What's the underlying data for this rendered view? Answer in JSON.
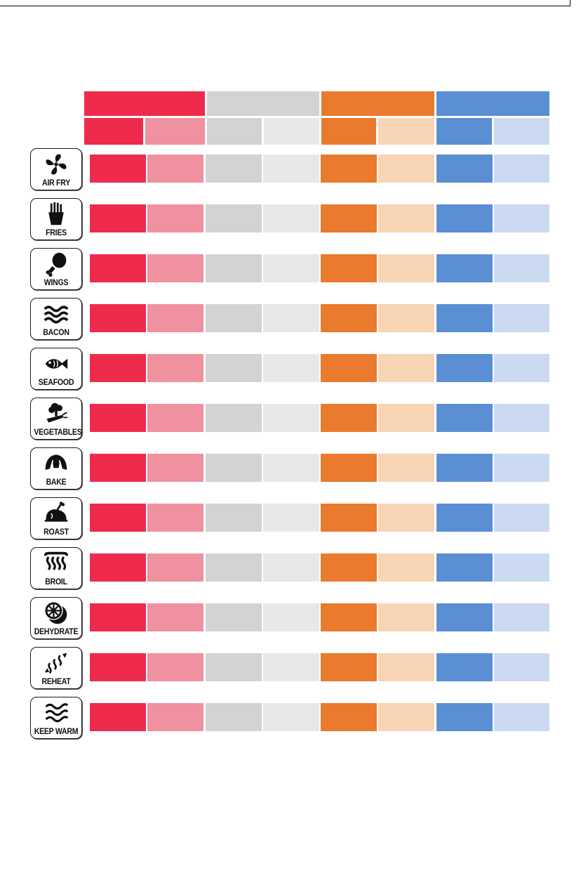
{
  "colors": {
    "red": "#ee2b4c",
    "pink": "#f0919f",
    "grey": "#d3d3d3",
    "lightgrey": "#e8e8e8",
    "orange": "#ea7a2e",
    "peach": "#f7d5b5",
    "blue": "#5a8fd3",
    "lightblue": "#cbdaf1"
  },
  "header": {
    "groups": [
      {
        "color": "#ee2b4c"
      },
      {
        "color": "#d3d3d3"
      },
      {
        "color": "#ea7a2e"
      },
      {
        "color": "#5a8fd3"
      }
    ],
    "subcolumns": [
      {
        "color": "#ee2b4c"
      },
      {
        "color": "#f0919f"
      },
      {
        "color": "#d3d3d3"
      },
      {
        "color": "#e8e8e8"
      },
      {
        "color": "#ea7a2e"
      },
      {
        "color": "#f7d5b5"
      },
      {
        "color": "#5a8fd3"
      },
      {
        "color": "#cbdaf1"
      }
    ]
  },
  "modes": [
    {
      "label": "AIR FRY",
      "icon": "fan-icon"
    },
    {
      "label": "FRIES",
      "icon": "fries-icon"
    },
    {
      "label": "WINGS",
      "icon": "drumstick-icon"
    },
    {
      "label": "BACON",
      "icon": "bacon-icon"
    },
    {
      "label": "SEAFOOD",
      "icon": "fish-icon"
    },
    {
      "label": "VEGETABLES",
      "icon": "vegetables-icon"
    },
    {
      "label": "BAKE",
      "icon": "croissant-icon"
    },
    {
      "label": "ROAST",
      "icon": "roast-chicken-icon"
    },
    {
      "label": "BROIL",
      "icon": "broil-heat-icon"
    },
    {
      "label": "DEHYDRATE",
      "icon": "citrus-slice-icon"
    },
    {
      "label": "REHEAT",
      "icon": "reheat-icon"
    },
    {
      "label": "KEEP WARM",
      "icon": "keep-warm-icon"
    }
  ]
}
